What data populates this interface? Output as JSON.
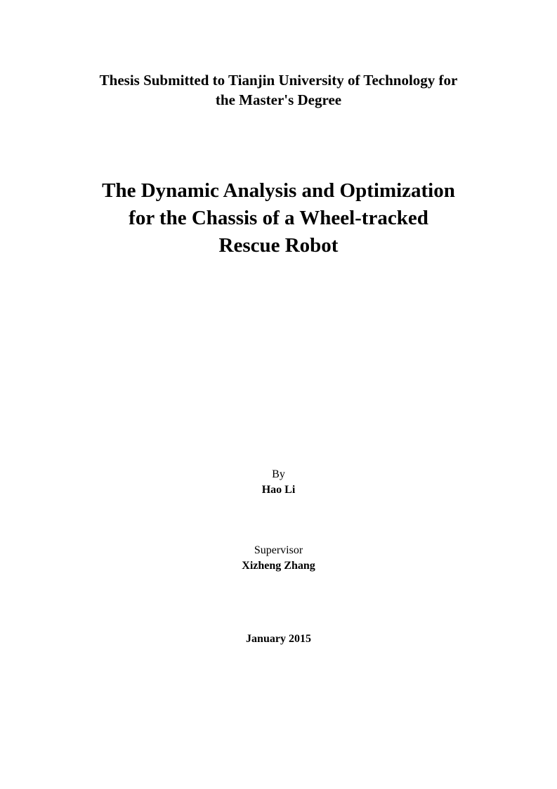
{
  "header": {
    "submission_line1": "Thesis Submitted to Tianjin University of Technology for",
    "submission_line2": "the Master's Degree"
  },
  "title": {
    "line1": "The Dynamic Analysis and Optimization",
    "line2": "for the Chassis of a Wheel-tracked",
    "line3": "Rescue Robot"
  },
  "author": {
    "by_label": "By",
    "name": "Hao Li"
  },
  "supervisor": {
    "label": "Supervisor",
    "name": "Xizheng Zhang"
  },
  "date": "January 2015"
}
